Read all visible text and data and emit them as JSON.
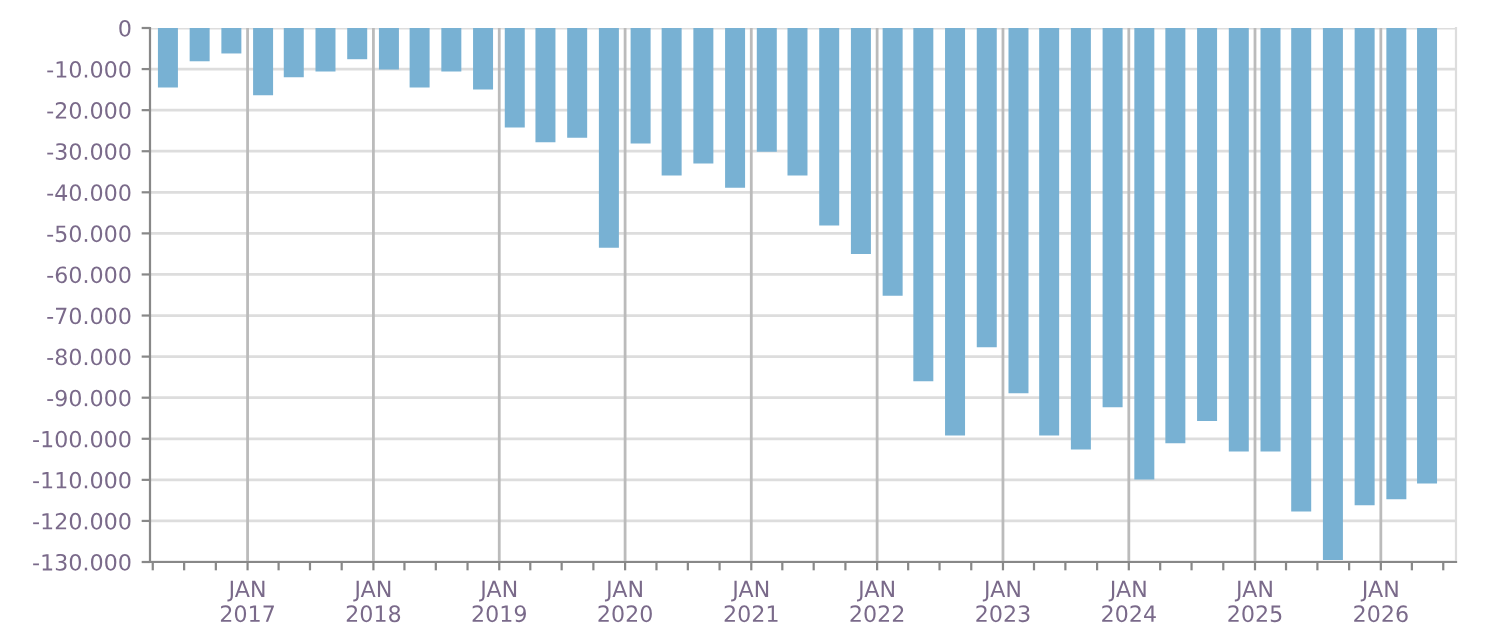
{
  "chart_data": {
    "type": "bar",
    "x": [
      "2016-05-15",
      "2016-08-15",
      "2016-11-15",
      "2017-02-15",
      "2017-05-15",
      "2017-08-15",
      "2017-11-15",
      "2018-02-15",
      "2018-05-15",
      "2018-08-15",
      "2018-11-15",
      "2019-02-15",
      "2019-05-15",
      "2019-08-15",
      "2019-11-15",
      "2020-02-15",
      "2020-05-15",
      "2020-08-15",
      "2020-11-15",
      "2021-02-15",
      "2021-05-15",
      "2021-08-15",
      "2021-11-15",
      "2022-02-15",
      "2022-05-15",
      "2022-08-15",
      "2022-11-15",
      "2023-02-15",
      "2023-05-15",
      "2023-08-15",
      "2023-11-15",
      "2024-02-15",
      "2024-05-15",
      "2024-08-15",
      "2024-11-15",
      "2025-02-15",
      "2025-05-15",
      "2025-08-15",
      "2025-11-15",
      "2026-02-15",
      "2026-05-15"
    ],
    "series": [
      {
        "color": "#78b1d3",
        "values": [
          -14500,
          -8100,
          -6200,
          -16400,
          -12000,
          -10600,
          -7600,
          -10100,
          -14500,
          -10600,
          -15000,
          -24200,
          -27800,
          -26700,
          -53500,
          -28100,
          -35900,
          -33000,
          -38900,
          -30100,
          -35900,
          -48100,
          -55000,
          -65200,
          -86000,
          -99200,
          -77700,
          -88900,
          -99200,
          -102600,
          -92300,
          -109900,
          -101100,
          -95700,
          -103100,
          -103100,
          -117700,
          -129500,
          -116200,
          -114700,
          -110900
        ]
      }
    ],
    "xlim": [
      "2016-03-24",
      "2026-08-07"
    ],
    "xticks": [
      {
        "value": "2016-04-01",
        "label": null
      },
      {
        "value": "2016-07-01",
        "label": null
      },
      {
        "value": "2016-10-01",
        "label": null
      },
      {
        "value": "2017-01-01",
        "label": "JAN\n2017"
      },
      {
        "value": "2017-04-01",
        "label": null
      },
      {
        "value": "2017-07-01",
        "label": null
      },
      {
        "value": "2017-10-01",
        "label": null
      },
      {
        "value": "2018-01-01",
        "label": "JAN\n2018"
      },
      {
        "value": "2018-04-01",
        "label": null
      },
      {
        "value": "2018-07-01",
        "label": null
      },
      {
        "value": "2018-10-01",
        "label": null
      },
      {
        "value": "2019-01-01",
        "label": "JAN\n2019"
      },
      {
        "value": "2019-04-01",
        "label": null
      },
      {
        "value": "2019-07-01",
        "label": null
      },
      {
        "value": "2019-10-01",
        "label": null
      },
      {
        "value": "2020-01-01",
        "label": "JAN\n2020"
      },
      {
        "value": "2020-04-01",
        "label": null
      },
      {
        "value": "2020-07-01",
        "label": null
      },
      {
        "value": "2020-10-01",
        "label": null
      },
      {
        "value": "2021-01-01",
        "label": "JAN\n2021"
      },
      {
        "value": "2021-04-01",
        "label": null
      },
      {
        "value": "2021-07-01",
        "label": null
      },
      {
        "value": "2021-10-01",
        "label": null
      },
      {
        "value": "2022-01-01",
        "label": "JAN\n2022"
      },
      {
        "value": "2022-04-01",
        "label": null
      },
      {
        "value": "2022-07-01",
        "label": null
      },
      {
        "value": "2022-10-01",
        "label": null
      },
      {
        "value": "2023-01-01",
        "label": "JAN\n2023"
      },
      {
        "value": "2023-04-01",
        "label": null
      },
      {
        "value": "2023-07-01",
        "label": null
      },
      {
        "value": "2023-10-01",
        "label": null
      },
      {
        "value": "2024-01-01",
        "label": "JAN\n2024"
      },
      {
        "value": "2024-04-01",
        "label": null
      },
      {
        "value": "2024-07-01",
        "label": null
      },
      {
        "value": "2024-10-01",
        "label": null
      },
      {
        "value": "2025-01-01",
        "label": "JAN\n2025"
      },
      {
        "value": "2025-04-01",
        "label": null
      },
      {
        "value": "2025-07-01",
        "label": null
      },
      {
        "value": "2025-10-01",
        "label": null
      },
      {
        "value": "2026-01-01",
        "label": "JAN\n2026"
      },
      {
        "value": "2026-04-01",
        "label": null
      },
      {
        "value": "2026-07-01",
        "label": null
      }
    ],
    "ylim": [
      -130000,
      0
    ],
    "yticks": [
      {
        "value": 0,
        "label": "0"
      },
      {
        "value": -10000,
        "label": "-10.000"
      },
      {
        "value": -20000,
        "label": "-20.000"
      },
      {
        "value": -30000,
        "label": "-30.000"
      },
      {
        "value": -40000,
        "label": "-40.000"
      },
      {
        "value": -50000,
        "label": "-50.000"
      },
      {
        "value": -60000,
        "label": "-60.000"
      },
      {
        "value": -70000,
        "label": "-70.000"
      },
      {
        "value": -80000,
        "label": "-80.000"
      },
      {
        "value": -90000,
        "label": "-90.000"
      },
      {
        "value": -100000,
        "label": "-100.000"
      },
      {
        "value": -110000,
        "label": "-110.000"
      },
      {
        "value": -120000,
        "label": "-120.000"
      },
      {
        "value": -130000,
        "label": "-130.000"
      }
    ],
    "grid": true
  }
}
